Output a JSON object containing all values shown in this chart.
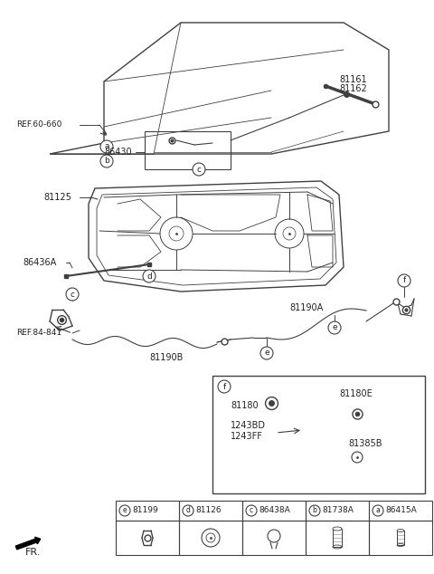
{
  "bg_color": "#ffffff",
  "line_color": "#404040",
  "text_color": "#222222",
  "fig_width": 4.8,
  "fig_height": 6.34,
  "labels": {
    "ref_60_660": "REF.60-660",
    "ref_84_841": "REF.84-841",
    "81161": "81161",
    "81162": "81162",
    "86430": "86430",
    "81125": "81125",
    "86436A": "86436A",
    "81190A": "81190A",
    "81190B": "81190B",
    "81180": "81180",
    "81180E": "81180E",
    "1243BD": "1243BD",
    "1243FF": "1243FF",
    "81385B": "81385B",
    "fr": "FR."
  },
  "table_labels": [
    {
      "circle": "e",
      "part": "81199"
    },
    {
      "circle": "d",
      "part": "81126"
    },
    {
      "circle": "c",
      "part": "86438A"
    },
    {
      "circle": "b",
      "part": "81738A"
    },
    {
      "circle": "a",
      "part": "86415A"
    }
  ]
}
